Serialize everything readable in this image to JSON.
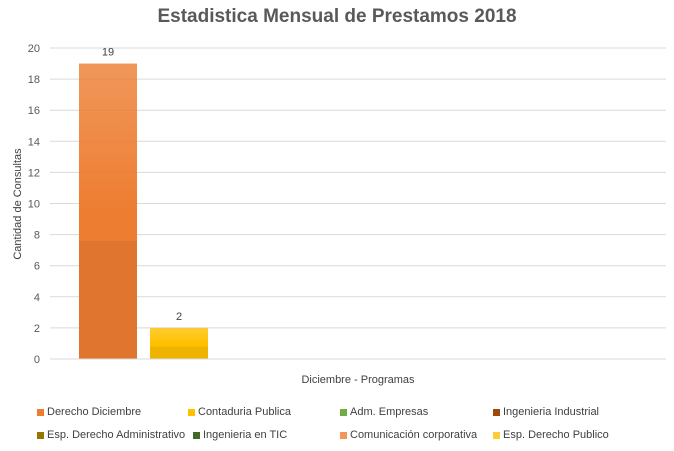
{
  "chart_data": {
    "type": "bar",
    "title": "Estadistica Mensual de Prestamos 2018",
    "xlabel": "Diciembre - Programas",
    "ylabel": "Cantidad de Consultas",
    "ylim": [
      0,
      20
    ],
    "yticks": [
      0,
      2,
      4,
      6,
      8,
      10,
      12,
      14,
      16,
      18,
      20
    ],
    "grid": true,
    "legend_position": "bottom",
    "categories": [
      "Diciembre - Programas"
    ],
    "series": [
      {
        "name": "Derecho Diciembre",
        "values": [
          19
        ],
        "color": "#ED7D31"
      },
      {
        "name": "Contaduria Publica",
        "values": [
          2
        ],
        "color": "#FFC000"
      },
      {
        "name": "Adm. Empresas",
        "values": [
          0
        ],
        "color": "#70AD47"
      },
      {
        "name": "Ingenieria Industrial",
        "values": [
          0
        ],
        "color": "#9E480E"
      },
      {
        "name": "Esp. Derecho Administrativo",
        "values": [
          0
        ],
        "color": "#997300"
      },
      {
        "name": "Ingenieria en TIC",
        "values": [
          0
        ],
        "color": "#43682B"
      },
      {
        "name": "Comunicación corporativa",
        "values": [
          0
        ],
        "color": "#F1975A"
      },
      {
        "name": "Esp. Derecho Publico",
        "values": [
          0
        ],
        "color": "#FFCD33"
      }
    ],
    "data_labels": [
      "19",
      "2"
    ]
  }
}
